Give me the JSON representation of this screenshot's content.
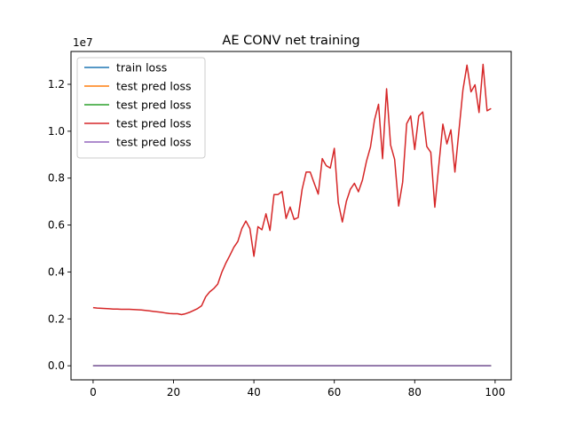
{
  "chart_data": {
    "type": "line",
    "title": "AE CONV net training",
    "xlabel": "",
    "ylabel": "",
    "y_offset_label": "1e7",
    "xlim": [
      -5.5,
      104
    ],
    "ylim": [
      -0.06,
      1.34
    ],
    "x_ticks": [
      0,
      20,
      40,
      60,
      80,
      100
    ],
    "y_ticks": [
      0.0,
      0.2,
      0.4,
      0.6,
      0.8,
      1.0,
      1.2
    ],
    "y_tick_labels": [
      "0.0",
      "0.2",
      "0.4",
      "0.6",
      "0.8",
      "1.0",
      "1.2"
    ],
    "grid": false,
    "legend_position": "upper-left",
    "series": [
      {
        "name": "train loss",
        "color": "#1f77b4",
        "x_start": 0,
        "x_end": 99,
        "constant": 0.0
      },
      {
        "name": "test pred loss",
        "color": "#ff7f0e",
        "x_start": 0,
        "x_end": 99,
        "constant": 0.0
      },
      {
        "name": "test pred loss",
        "color": "#2ca02c",
        "x_start": 0,
        "x_end": 99,
        "constant": 0.0
      },
      {
        "name": "test pred loss",
        "color": "#d62728",
        "x_start": 0,
        "values": [
          0.248,
          0.246,
          0.245,
          0.244,
          0.243,
          0.242,
          0.242,
          0.241,
          0.241,
          0.241,
          0.24,
          0.239,
          0.238,
          0.236,
          0.234,
          0.232,
          0.23,
          0.228,
          0.225,
          0.223,
          0.222,
          0.222,
          0.218,
          0.222,
          0.228,
          0.236,
          0.244,
          0.256,
          0.294,
          0.315,
          0.329,
          0.348,
          0.398,
          0.437,
          0.47,
          0.505,
          0.53,
          0.585,
          0.617,
          0.585,
          0.467,
          0.593,
          0.58,
          0.648,
          0.577,
          0.73,
          0.73,
          0.743,
          0.628,
          0.677,
          0.624,
          0.632,
          0.753,
          0.826,
          0.826,
          0.778,
          0.732,
          0.883,
          0.853,
          0.843,
          0.927,
          0.695,
          0.613,
          0.701,
          0.753,
          0.778,
          0.742,
          0.792,
          0.872,
          0.933,
          1.048,
          1.115,
          0.883,
          1.181,
          0.941,
          0.88,
          0.681,
          0.783,
          1.032,
          1.065,
          0.922,
          1.065,
          1.082,
          0.935,
          0.91,
          0.676,
          0.856,
          1.03,
          0.946,
          1.006,
          0.826,
          1.001,
          1.177,
          1.282,
          1.168,
          1.198,
          1.08,
          1.285,
          1.087,
          1.097
        ]
      },
      {
        "name": "test pred loss",
        "color": "#9467bd",
        "x_start": 0,
        "x_end": 99,
        "constant": 0.0
      }
    ]
  }
}
